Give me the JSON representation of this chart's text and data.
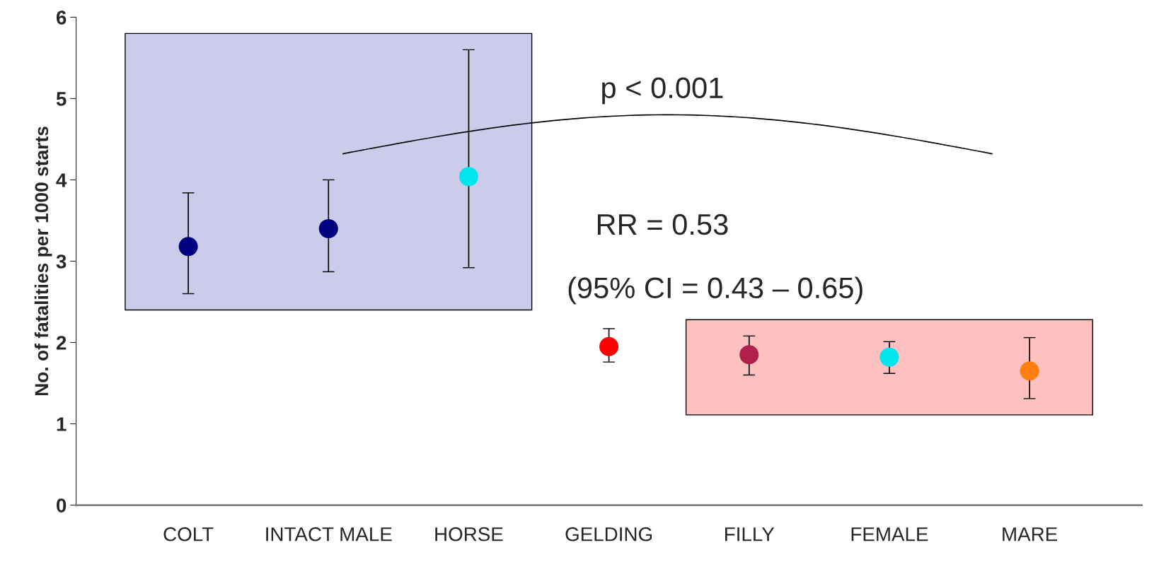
{
  "chart_data": {
    "type": "scatter",
    "ylabel": "No. of fatalities per 1000 starts",
    "categories": [
      "COLT",
      "INTACT MALE",
      "HORSE",
      "GELDING",
      "FILLY",
      "FEMALE",
      "MARE"
    ],
    "series": [
      {
        "colors": [
          "#000080",
          "#000080",
          "#00e5ee",
          "#ff0000",
          "#b0204a",
          "#00e5ee",
          "#ff7f0e"
        ],
        "values": [
          3.18,
          3.4,
          4.04,
          1.95,
          1.85,
          1.82,
          1.65
        ],
        "errors": [
          [
            2.6,
            3.84
          ],
          [
            2.87,
            4.0
          ],
          [
            2.92,
            5.6
          ],
          [
            1.76,
            2.17
          ],
          [
            1.6,
            2.08
          ],
          [
            1.62,
            2.01
          ],
          [
            1.31,
            2.06
          ]
        ]
      }
    ],
    "bands": [
      {
        "axis": "x",
        "from": "COLT",
        "to": "HORSE",
        "color": "#ccccea"
      },
      {
        "axis": "x",
        "from": "FILLY",
        "to": "MARE",
        "color": "#ffc0c0"
      }
    ],
    "annotations": [
      "p < 0.001",
      "RR = 0.53",
      "(95% CI = 0.43 – 0.65)"
    ],
    "ylim": [
      0,
      6
    ],
    "yticks": [
      0,
      1,
      2,
      3,
      4,
      5,
      6
    ],
    "marker": "circle",
    "grid": false,
    "legend": false
  }
}
